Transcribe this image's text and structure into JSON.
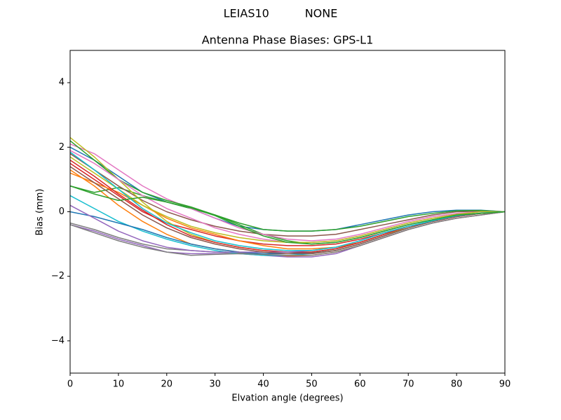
{
  "chart_data": {
    "type": "line",
    "suptitle": "LEIAS10          NONE",
    "title": "Antenna Phase Biases: GPS-L1",
    "xlabel": "Elvation angle (degrees)",
    "ylabel": "Bias (mm)",
    "x": [
      0,
      5,
      10,
      15,
      20,
      25,
      30,
      35,
      40,
      45,
      50,
      55,
      60,
      65,
      70,
      75,
      80,
      85,
      90
    ],
    "xlim": [
      0,
      90
    ],
    "xticks": [
      0,
      10,
      20,
      30,
      40,
      50,
      60,
      70,
      80,
      90
    ],
    "ylim": [
      -5,
      5
    ],
    "yticks": [
      {
        "value": -4,
        "label": "−4"
      },
      {
        "value": -2,
        "label": "−2"
      },
      0,
      2,
      4
    ],
    "grid": false,
    "series": [
      {
        "color": "#1f77b4",
        "values": [
          2.0,
          1.6,
          1.1,
          0.6,
          0.3,
          0.1,
          -0.2,
          -0.45,
          -0.55,
          -0.6,
          -0.6,
          -0.55,
          -0.4,
          -0.25,
          -0.1,
          0.0,
          0.05,
          0.05,
          0.0
        ]
      },
      {
        "color": "#ff7f0e",
        "values": [
          1.3,
          0.8,
          0.2,
          -0.3,
          -0.7,
          -1.0,
          -1.15,
          -1.25,
          -1.35,
          -1.38,
          -1.35,
          -1.25,
          -1.05,
          -0.8,
          -0.55,
          -0.35,
          -0.2,
          -0.1,
          0.0
        ]
      },
      {
        "color": "#2ca02c",
        "values": [
          0.8,
          0.6,
          0.75,
          0.5,
          0.3,
          0.1,
          -0.1,
          -0.4,
          -0.7,
          -0.9,
          -1.0,
          -0.95,
          -0.8,
          -0.6,
          -0.4,
          -0.25,
          -0.1,
          -0.05,
          0.0
        ]
      },
      {
        "color": "#d62728",
        "values": [
          1.5,
          1.0,
          0.5,
          0.0,
          -0.35,
          -0.55,
          -0.75,
          -0.9,
          -1.0,
          -1.05,
          -1.05,
          -1.0,
          -0.85,
          -0.65,
          -0.45,
          -0.3,
          -0.15,
          -0.05,
          0.0
        ]
      },
      {
        "color": "#9467bd",
        "values": [
          -0.4,
          -0.6,
          -0.85,
          -1.05,
          -1.25,
          -1.3,
          -1.3,
          -1.3,
          -1.35,
          -1.4,
          -1.4,
          -1.3,
          -1.05,
          -0.8,
          -0.55,
          -0.35,
          -0.2,
          -0.1,
          0.0
        ]
      },
      {
        "color": "#8c564b",
        "values": [
          1.8,
          1.3,
          0.8,
          0.35,
          0.0,
          -0.25,
          -0.45,
          -0.6,
          -0.7,
          -0.75,
          -0.75,
          -0.7,
          -0.55,
          -0.4,
          -0.25,
          -0.1,
          0.0,
          0.02,
          0.0
        ]
      },
      {
        "color": "#e377c2",
        "values": [
          2.1,
          1.8,
          1.3,
          0.8,
          0.4,
          0.1,
          -0.2,
          -0.5,
          -0.7,
          -0.85,
          -0.9,
          -0.85,
          -0.7,
          -0.5,
          -0.3,
          -0.15,
          -0.05,
          0.0,
          0.0
        ]
      },
      {
        "color": "#7f7f7f",
        "values": [
          -0.35,
          -0.55,
          -0.8,
          -1.0,
          -1.15,
          -1.2,
          -1.25,
          -1.28,
          -1.3,
          -1.3,
          -1.28,
          -1.2,
          -1.0,
          -0.75,
          -0.5,
          -0.3,
          -0.15,
          -0.05,
          0.0
        ]
      },
      {
        "color": "#bcbd22",
        "values": [
          2.3,
          1.7,
          1.0,
          0.3,
          -0.3,
          -0.7,
          -0.95,
          -1.1,
          -1.2,
          -1.25,
          -1.25,
          -1.15,
          -0.95,
          -0.7,
          -0.5,
          -0.3,
          -0.15,
          -0.05,
          0.0
        ]
      },
      {
        "color": "#17becf",
        "values": [
          0.5,
          0.1,
          -0.3,
          -0.6,
          -0.85,
          -1.05,
          -1.2,
          -1.3,
          -1.35,
          -1.35,
          -1.3,
          -1.2,
          -1.0,
          -0.75,
          -0.5,
          -0.3,
          -0.15,
          -0.05,
          0.0
        ]
      },
      {
        "color": "#1f77b4",
        "values": [
          0.0,
          -0.15,
          -0.35,
          -0.55,
          -0.8,
          -1.0,
          -1.15,
          -1.25,
          -1.3,
          -1.3,
          -1.25,
          -1.15,
          -0.95,
          -0.7,
          -0.45,
          -0.3,
          -0.15,
          -0.05,
          0.0
        ]
      },
      {
        "color": "#ff7f0e",
        "values": [
          1.2,
          0.9,
          0.6,
          0.2,
          -0.2,
          -0.5,
          -0.7,
          -0.9,
          -1.05,
          -1.15,
          -1.15,
          -1.1,
          -0.95,
          -0.7,
          -0.45,
          -0.3,
          -0.15,
          -0.05,
          0.0
        ]
      },
      {
        "color": "#2ca02c",
        "values": [
          2.2,
          1.6,
          1.0,
          0.6,
          0.35,
          0.15,
          -0.1,
          -0.35,
          -0.55,
          -0.6,
          -0.6,
          -0.55,
          -0.45,
          -0.3,
          -0.15,
          -0.05,
          0.03,
          0.04,
          0.0
        ]
      },
      {
        "color": "#d62728",
        "values": [
          1.6,
          1.1,
          0.55,
          0.05,
          -0.4,
          -0.75,
          -0.95,
          -1.1,
          -1.2,
          -1.25,
          -1.25,
          -1.15,
          -0.95,
          -0.7,
          -0.45,
          -0.3,
          -0.15,
          -0.05,
          0.0
        ]
      },
      {
        "color": "#9467bd",
        "values": [
          0.2,
          -0.2,
          -0.6,
          -0.9,
          -1.1,
          -1.2,
          -1.25,
          -1.25,
          -1.25,
          -1.25,
          -1.2,
          -1.1,
          -0.9,
          -0.65,
          -0.45,
          -0.3,
          -0.15,
          -0.05,
          0.0
        ]
      },
      {
        "color": "#8c564b",
        "values": [
          1.4,
          0.9,
          0.4,
          -0.1,
          -0.5,
          -0.8,
          -1.0,
          -1.15,
          -1.25,
          -1.3,
          -1.3,
          -1.2,
          -1.0,
          -0.75,
          -0.5,
          -0.3,
          -0.15,
          -0.05,
          0.0
        ]
      },
      {
        "color": "#e377c2",
        "values": [
          1.9,
          1.5,
          1.0,
          0.5,
          0.1,
          -0.2,
          -0.5,
          -0.7,
          -0.85,
          -0.95,
          -0.95,
          -0.9,
          -0.75,
          -0.55,
          -0.35,
          -0.2,
          -0.08,
          0.0,
          0.0
        ]
      },
      {
        "color": "#7f7f7f",
        "values": [
          -0.4,
          -0.65,
          -0.9,
          -1.1,
          -1.25,
          -1.35,
          -1.32,
          -1.3,
          -1.32,
          -1.35,
          -1.35,
          -1.25,
          -1.05,
          -0.8,
          -0.55,
          -0.35,
          -0.2,
          -0.1,
          0.0
        ]
      },
      {
        "color": "#bcbd22",
        "values": [
          1.7,
          1.2,
          0.7,
          0.2,
          -0.15,
          -0.45,
          -0.65,
          -0.8,
          -0.9,
          -0.95,
          -0.95,
          -0.9,
          -0.75,
          -0.55,
          -0.35,
          -0.2,
          -0.08,
          0.0,
          0.0
        ]
      },
      {
        "color": "#17becf",
        "values": [
          1.85,
          1.3,
          0.7,
          0.1,
          -0.35,
          -0.65,
          -0.9,
          -1.05,
          -1.15,
          -1.2,
          -1.2,
          -1.1,
          -0.9,
          -0.65,
          -0.45,
          -0.28,
          -0.12,
          -0.04,
          0.0
        ]
      },
      {
        "color": "#2ca02c",
        "values": [
          0.8,
          0.55,
          0.35,
          0.45,
          0.3,
          0.12,
          -0.12,
          -0.45,
          -0.75,
          -0.95,
          -1.0,
          -0.95,
          -0.8,
          -0.6,
          -0.4,
          -0.25,
          -0.1,
          -0.05,
          0.0
        ]
      }
    ]
  }
}
